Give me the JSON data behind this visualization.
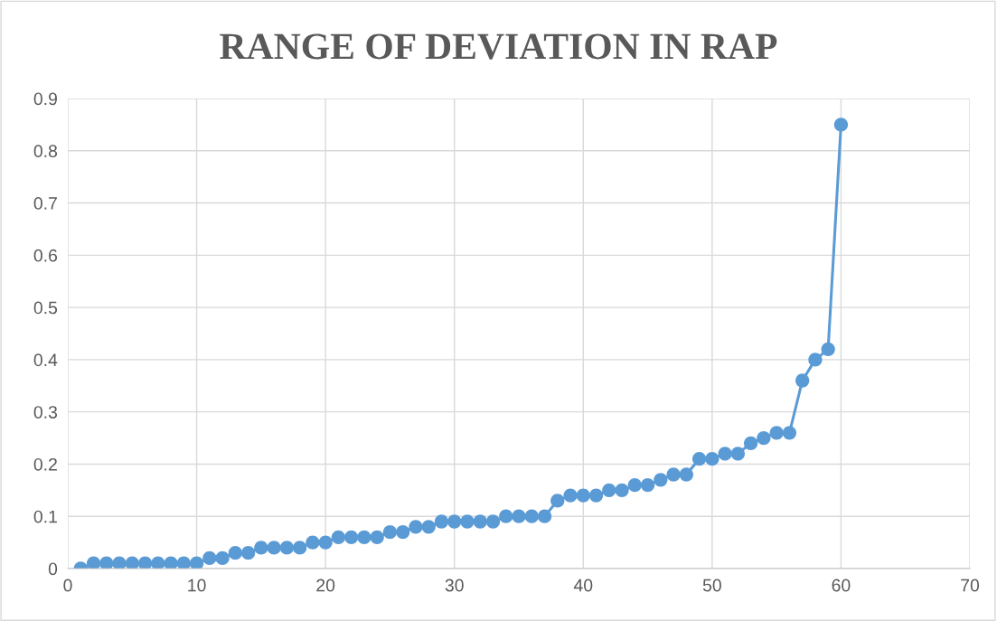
{
  "chart_data": {
    "type": "line",
    "title": "RANGE OF DEVIATION IN RAP",
    "x": [
      1,
      2,
      3,
      4,
      5,
      6,
      7,
      8,
      9,
      10,
      11,
      12,
      13,
      14,
      15,
      16,
      17,
      18,
      19,
      20,
      21,
      22,
      23,
      24,
      25,
      26,
      27,
      28,
      29,
      30,
      31,
      32,
      33,
      34,
      35,
      36,
      37,
      38,
      39,
      40,
      41,
      42,
      43,
      44,
      45,
      46,
      47,
      48,
      49,
      50,
      51,
      52,
      53,
      54,
      55,
      56,
      57,
      58,
      59,
      60
    ],
    "series": [
      {
        "color": "#5b9bd5",
        "values": [
          0,
          0.01,
          0.01,
          0.01,
          0.01,
          0.01,
          0.01,
          0.01,
          0.01,
          0.01,
          0.02,
          0.02,
          0.03,
          0.03,
          0.04,
          0.04,
          0.04,
          0.04,
          0.05,
          0.05,
          0.06,
          0.06,
          0.06,
          0.06,
          0.07,
          0.07,
          0.08,
          0.08,
          0.09,
          0.09,
          0.09,
          0.09,
          0.09,
          0.1,
          0.1,
          0.1,
          0.1,
          0.13,
          0.14,
          0.14,
          0.14,
          0.15,
          0.15,
          0.16,
          0.16,
          0.17,
          0.18,
          0.18,
          0.21,
          0.21,
          0.22,
          0.22,
          0.24,
          0.25,
          0.26,
          0.26,
          0.36,
          0.4,
          0.42,
          0.85
        ]
      }
    ],
    "xlim": [
      0,
      70
    ],
    "xticks": [
      0,
      10,
      20,
      30,
      40,
      50,
      60,
      70
    ],
    "ylim": [
      0,
      0.9
    ],
    "yticks": [
      0,
      0.1,
      0.2,
      0.3,
      0.4,
      0.5,
      0.6,
      0.7,
      0.8,
      0.9
    ],
    "grid": true,
    "marker": "circle",
    "line_style": "solid"
  }
}
